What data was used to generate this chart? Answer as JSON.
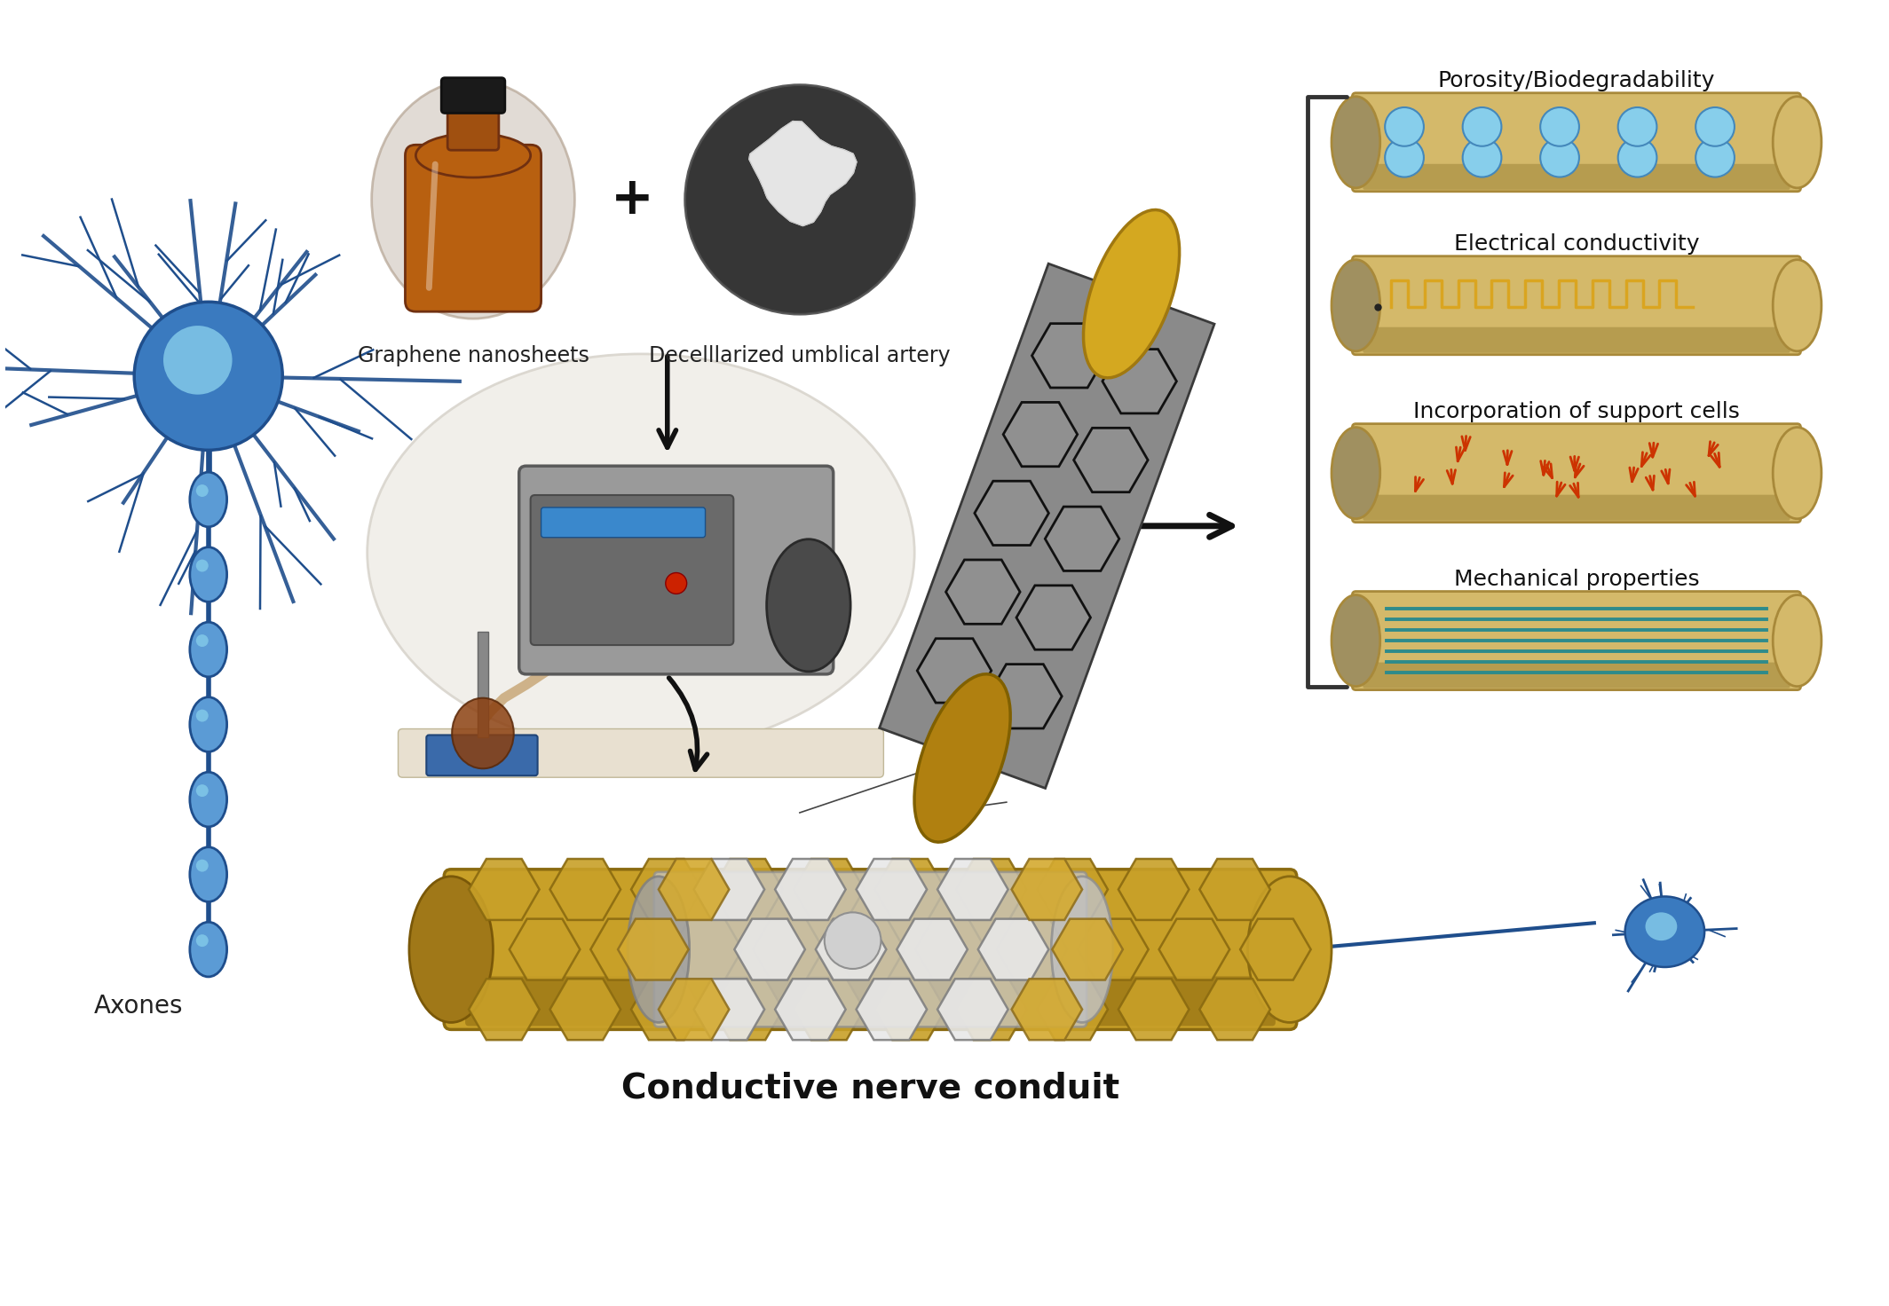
{
  "bottom_label": "Conductive nerve conduit",
  "axones_label": "Axones",
  "graphene_label": "Graphene nanosheets",
  "artery_label": "Decelllarized umblical artery",
  "plus_symbol": "+",
  "right_labels": [
    "Porosity/Biodegradability",
    "Electrical conductivity",
    "Incorporation of support cells",
    "Mechanical properties"
  ],
  "tube_color": "#D4B96A",
  "tube_dark": "#A8893A",
  "tube_shadow": "#8B7228",
  "graphene_gray": "#909090",
  "graphene_dark": "#1a1a1a",
  "blue_neuron": "#1F4E8C",
  "blue_light": "#3A7ABF",
  "blue_highlight": "#87CEEB",
  "axon_bead": "#5B9BD5",
  "background": "#FFFFFF",
  "arrow_color": "#111111",
  "square_wave_color": "#DAA520",
  "red_cell_color": "#CC3300",
  "teal_line_color": "#2E8B8B",
  "bracket_color": "#333333",
  "hole_color": "#87CEEB",
  "hole_edge": "#4488BB"
}
